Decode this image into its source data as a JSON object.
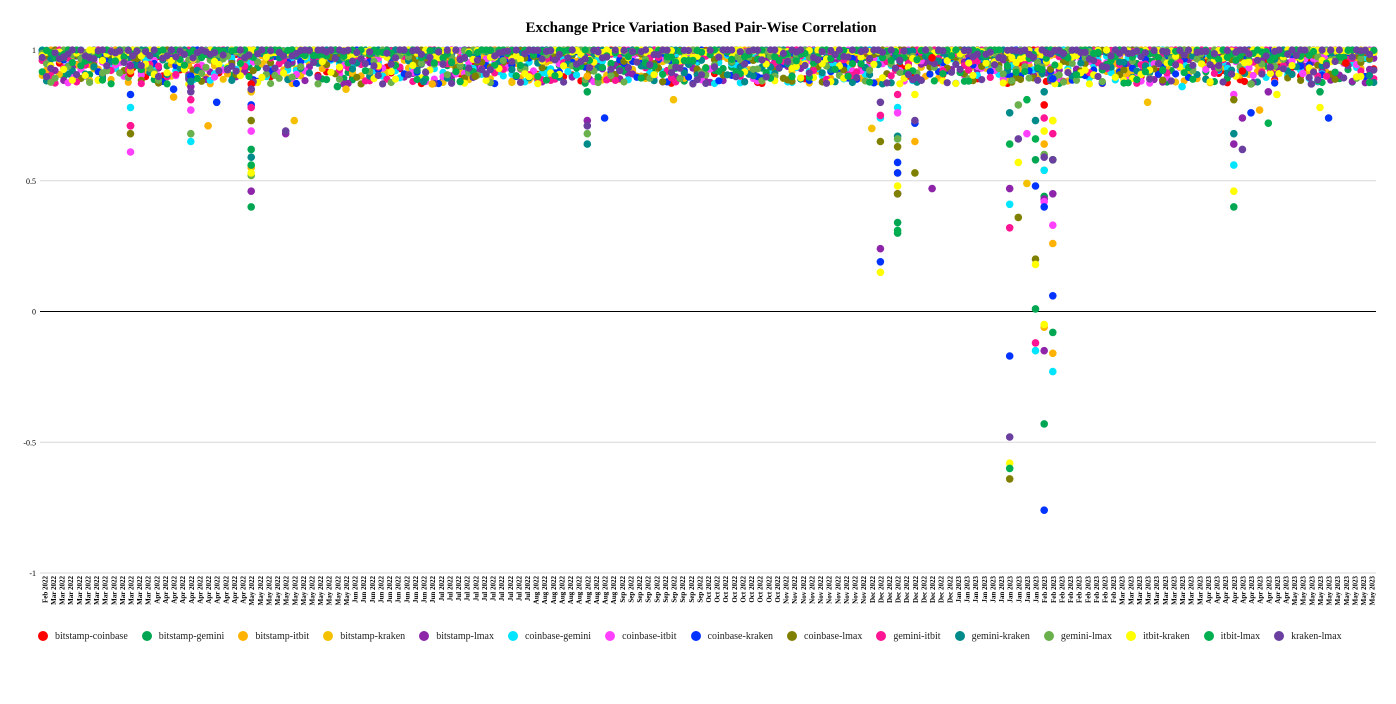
{
  "chart_data": {
    "type": "scatter",
    "title": "Exchange Price Variation Based Pair-Wise Correlation",
    "xlabel": "",
    "ylabel": "",
    "ylim": [
      -1,
      1
    ],
    "yticks": [
      {
        "value": 1,
        "label": "1"
      },
      {
        "value": 0.5,
        "label": "0.5"
      },
      {
        "value": 0,
        "label": "0"
      },
      {
        "value": -0.5,
        "label": "-0.5"
      },
      {
        "value": -1,
        "label": "-1"
      }
    ],
    "grid": true,
    "legend_position": "bottom",
    "x_categories": [
      "Feb 2022",
      "Mar 2022",
      "Mar 2022",
      "Mar 2022",
      "Mar 2022",
      "Mar 2022",
      "Mar 2022",
      "Mar 2022",
      "Mar 2022",
      "Mar 2022",
      "Mar 2022",
      "Mar 2022",
      "Mar 2022",
      "Apr 2022",
      "Apr 2022",
      "Apr 2022",
      "Apr 2022",
      "Apr 2022",
      "Apr 2022",
      "Apr 2022",
      "Apr 2022",
      "Apr 2022",
      "Apr 2022",
      "Apr 2022",
      "May 2022",
      "May 2022",
      "May 2022",
      "May 2022",
      "May 2022",
      "May 2022",
      "May 2022",
      "May 2022",
      "May 2022",
      "May 2022",
      "May 2022",
      "May 2022",
      "Jun 2022",
      "Jun 2022",
      "Jun 2022",
      "Jun 2022",
      "Jun 2022",
      "Jun 2022",
      "Jun 2022",
      "Jun 2022",
      "Jun 2022",
      "Jun 2022",
      "Jul 2022",
      "Jul 2022",
      "Jul 2022",
      "Jul 2022",
      "Jul 2022",
      "Jul 2022",
      "Jul 2022",
      "Jul 2022",
      "Jul 2022",
      "Jul 2022",
      "Jul 2022",
      "Aug 2022",
      "Aug 2022",
      "Aug 2022",
      "Aug 2022",
      "Aug 2022",
      "Aug 2022",
      "Aug 2022",
      "Aug 2022",
      "Aug 2022",
      "Aug 2022",
      "Sep 2022",
      "Sep 2022",
      "Sep 2022",
      "Sep 2022",
      "Sep 2022",
      "Sep 2022",
      "Sep 2022",
      "Sep 2022",
      "Sep 2022",
      "Sep 2022",
      "Oct 2022",
      "Oct 2022",
      "Oct 2022",
      "Oct 2022",
      "Oct 2022",
      "Oct 2022",
      "Oct 2022",
      "Oct 2022",
      "Oct 2022",
      "Nov 2022",
      "Nov 2022",
      "Nov 2022",
      "Nov 2022",
      "Nov 2022",
      "Nov 2022",
      "Nov 2022",
      "Nov 2022",
      "Nov 2022",
      "Nov 2022",
      "Dec 2022",
      "Dec 2022",
      "Dec 2022",
      "Dec 2022",
      "Dec 2022",
      "Dec 2022",
      "Dec 2022",
      "Dec 2022",
      "Dec 2022",
      "Dec 2022",
      "Jan 2023",
      "Jan 2023",
      "Jan 2023",
      "Jan 2023",
      "Jan 2023",
      "Jan 2023",
      "Jan 2023",
      "Jan 2023",
      "Jan 2023",
      "Jan 2023",
      "Feb 2023",
      "Feb 2023",
      "Feb 2023",
      "Feb 2023",
      "Feb 2023",
      "Feb 2023",
      "Feb 2023",
      "Feb 2023",
      "Feb 2023",
      "Mar 2023",
      "Mar 2023",
      "Mar 2023",
      "Mar 2023",
      "Mar 2023",
      "Mar 2023",
      "Mar 2023",
      "Mar 2023",
      "Mar 2023",
      "Mar 2023",
      "Apr 2023",
      "Apr 2023",
      "Apr 2023",
      "Apr 2023",
      "Apr 2023",
      "Apr 2023",
      "Apr 2023",
      "Apr 2023",
      "Apr 2023",
      "Apr 2023",
      "May 2023",
      "May 2023",
      "May 2023",
      "May 2023",
      "May 2023",
      "May 2023",
      "May 2023",
      "May 2023",
      "May 2023",
      "May 2023"
    ],
    "series": [
      {
        "name": "bitstamp-coinbase",
        "color": "#ff0000",
        "outliers": [
          [
            10,
            0.91
          ],
          [
            10,
            0.71
          ],
          [
            24,
            0.87
          ],
          [
            103,
            0.97
          ],
          [
            116,
            0.79
          ],
          [
            139,
            0.92
          ],
          [
            151,
            0.95
          ]
        ]
      },
      {
        "name": "bitstamp-gemini",
        "color": "#00a651",
        "outliers": [
          [
            24,
            0.4
          ],
          [
            24,
            0.62
          ],
          [
            34,
            0.86
          ],
          [
            63,
            0.84
          ],
          [
            99,
            0.3
          ],
          [
            99,
            0.34
          ],
          [
            115,
            0.01
          ],
          [
            115,
            0.58
          ],
          [
            116,
            -0.43
          ],
          [
            116,
            0.44
          ],
          [
            117,
            -0.08
          ],
          [
            138,
            0.4
          ],
          [
            148,
            0.84
          ]
        ]
      },
      {
        "name": "bitstamp-itbit",
        "color": "#ffb300",
        "outliers": [
          [
            15,
            0.82
          ],
          [
            19,
            0.71
          ],
          [
            24,
            0.55
          ],
          [
            45,
            0.87
          ],
          [
            63,
            0.9
          ],
          [
            99,
            0.53
          ],
          [
            101,
            0.65
          ],
          [
            116,
            -0.06
          ],
          [
            116,
            0.64
          ],
          [
            117,
            0.26
          ],
          [
            117,
            -0.16
          ],
          [
            141,
            0.77
          ]
        ]
      },
      {
        "name": "bitstamp-kraken",
        "color": "#f5c000",
        "outliers": [
          [
            10,
            0.92
          ],
          [
            24,
            0.84
          ],
          [
            29,
            0.73
          ],
          [
            35,
            0.85
          ],
          [
            73,
            0.81
          ],
          [
            96,
            0.7
          ],
          [
            114,
            0.49
          ],
          [
            116,
            0.54
          ],
          [
            117,
            0.73
          ],
          [
            128,
            0.8
          ]
        ]
      },
      {
        "name": "bitstamp-lmax",
        "color": "#8e24aa",
        "outliers": [
          [
            10,
            0.94
          ],
          [
            17,
            0.86
          ],
          [
            24,
            0.46
          ],
          [
            28,
            0.68
          ],
          [
            63,
            0.73
          ],
          [
            97,
            0.24
          ],
          [
            99,
            0.45
          ],
          [
            103,
            0.47
          ],
          [
            112,
            0.47
          ],
          [
            116,
            -0.15
          ],
          [
            116,
            0.43
          ],
          [
            117,
            0.45
          ],
          [
            138,
            0.64
          ],
          [
            139,
            0.74
          ],
          [
            142,
            0.84
          ]
        ]
      },
      {
        "name": "coinbase-gemini",
        "color": "#00e5ff",
        "outliers": [
          [
            10,
            0.78
          ],
          [
            17,
            0.65
          ],
          [
            97,
            0.74
          ],
          [
            99,
            0.78
          ],
          [
            112,
            0.41
          ],
          [
            115,
            -0.15
          ],
          [
            116,
            0.54
          ],
          [
            117,
            -0.23
          ],
          [
            138,
            0.56
          ],
          [
            132,
            0.86
          ]
        ]
      },
      {
        "name": "coinbase-itbit",
        "color": "#ff40ff",
        "outliers": [
          [
            10,
            0.61
          ],
          [
            17,
            0.77
          ],
          [
            24,
            0.69
          ],
          [
            99,
            0.76
          ],
          [
            114,
            0.68
          ],
          [
            116,
            0.42
          ],
          [
            117,
            0.33
          ],
          [
            138,
            0.83
          ],
          [
            146,
            0.91
          ]
        ]
      },
      {
        "name": "coinbase-kraken",
        "color": "#0033ff",
        "outliers": [
          [
            10,
            0.83
          ],
          [
            15,
            0.85
          ],
          [
            17,
            0.9
          ],
          [
            20,
            0.8
          ],
          [
            24,
            0.79
          ],
          [
            65,
            0.74
          ],
          [
            97,
            0.19
          ],
          [
            99,
            0.57
          ],
          [
            99,
            0.53
          ],
          [
            101,
            0.72
          ],
          [
            112,
            -0.17
          ],
          [
            115,
            0.48
          ],
          [
            116,
            -0.76
          ],
          [
            116,
            0.4
          ],
          [
            117,
            0.06
          ],
          [
            117,
            0.89
          ],
          [
            140,
            0.76
          ],
          [
            149,
            0.74
          ]
        ]
      },
      {
        "name": "coinbase-lmax",
        "color": "#808000",
        "outliers": [
          [
            10,
            0.68
          ],
          [
            24,
            0.73
          ],
          [
            50,
            0.9
          ],
          [
            97,
            0.65
          ],
          [
            99,
            0.63
          ],
          [
            99,
            0.45
          ],
          [
            101,
            0.53
          ],
          [
            112,
            -0.64
          ],
          [
            113,
            0.36
          ],
          [
            115,
            0.2
          ],
          [
            117,
            0.58
          ],
          [
            138,
            0.81
          ]
        ]
      },
      {
        "name": "gemini-itbit",
        "color": "#ff1493",
        "outliers": [
          [
            10,
            0.71
          ],
          [
            17,
            0.81
          ],
          [
            24,
            0.78
          ],
          [
            97,
            0.75
          ],
          [
            99,
            0.83
          ],
          [
            112,
            0.32
          ],
          [
            115,
            -0.12
          ],
          [
            116,
            0.74
          ],
          [
            117,
            0.68
          ]
        ]
      },
      {
        "name": "gemini-kraken",
        "color": "#008b8b",
        "outliers": [
          [
            17,
            0.88
          ],
          [
            24,
            0.59
          ],
          [
            44,
            0.88
          ],
          [
            63,
            0.64
          ],
          [
            99,
            0.67
          ],
          [
            112,
            0.76
          ],
          [
            115,
            0.73
          ],
          [
            116,
            0.84
          ],
          [
            138,
            0.68
          ]
        ]
      },
      {
        "name": "gemini-lmax",
        "color": "#6ab04c",
        "outliers": [
          [
            17,
            0.68
          ],
          [
            24,
            0.52
          ],
          [
            63,
            0.68
          ],
          [
            99,
            0.66
          ],
          [
            113,
            0.79
          ],
          [
            116,
            0.6
          ],
          [
            140,
            0.87
          ]
        ]
      },
      {
        "name": "itbit-kraken",
        "color": "#ffff00",
        "outliers": [
          [
            24,
            0.53
          ],
          [
            97,
            0.15
          ],
          [
            99,
            0.48
          ],
          [
            101,
            0.83
          ],
          [
            112,
            -0.58
          ],
          [
            113,
            0.57
          ],
          [
            115,
            0.18
          ],
          [
            116,
            -0.05
          ],
          [
            116,
            0.69
          ],
          [
            117,
            0.73
          ],
          [
            138,
            0.46
          ],
          [
            143,
            0.83
          ],
          [
            148,
            0.78
          ]
        ]
      },
      {
        "name": "itbit-lmax",
        "color": "#00b050",
        "outliers": [
          [
            24,
            0.56
          ],
          [
            99,
            0.31
          ],
          [
            112,
            -0.6
          ],
          [
            112,
            0.64
          ],
          [
            114,
            0.81
          ],
          [
            115,
            0.66
          ],
          [
            117,
            0.58
          ],
          [
            142,
            0.72
          ]
        ]
      },
      {
        "name": "kraken-lmax",
        "color": "#6a3fa0",
        "outliers": [
          [
            17,
            0.84
          ],
          [
            24,
            0.85
          ],
          [
            28,
            0.69
          ],
          [
            63,
            0.71
          ],
          [
            97,
            0.8
          ],
          [
            101,
            0.73
          ],
          [
            112,
            -0.48
          ],
          [
            113,
            0.66
          ],
          [
            116,
            0.59
          ],
          [
            117,
            0.58
          ],
          [
            139,
            0.62
          ],
          [
            147,
            0.87
          ]
        ]
      }
    ],
    "dense_band": {
      "min": 0.87,
      "max": 1.0,
      "note": "each series has daily points clustered near 1 for every date"
    }
  }
}
